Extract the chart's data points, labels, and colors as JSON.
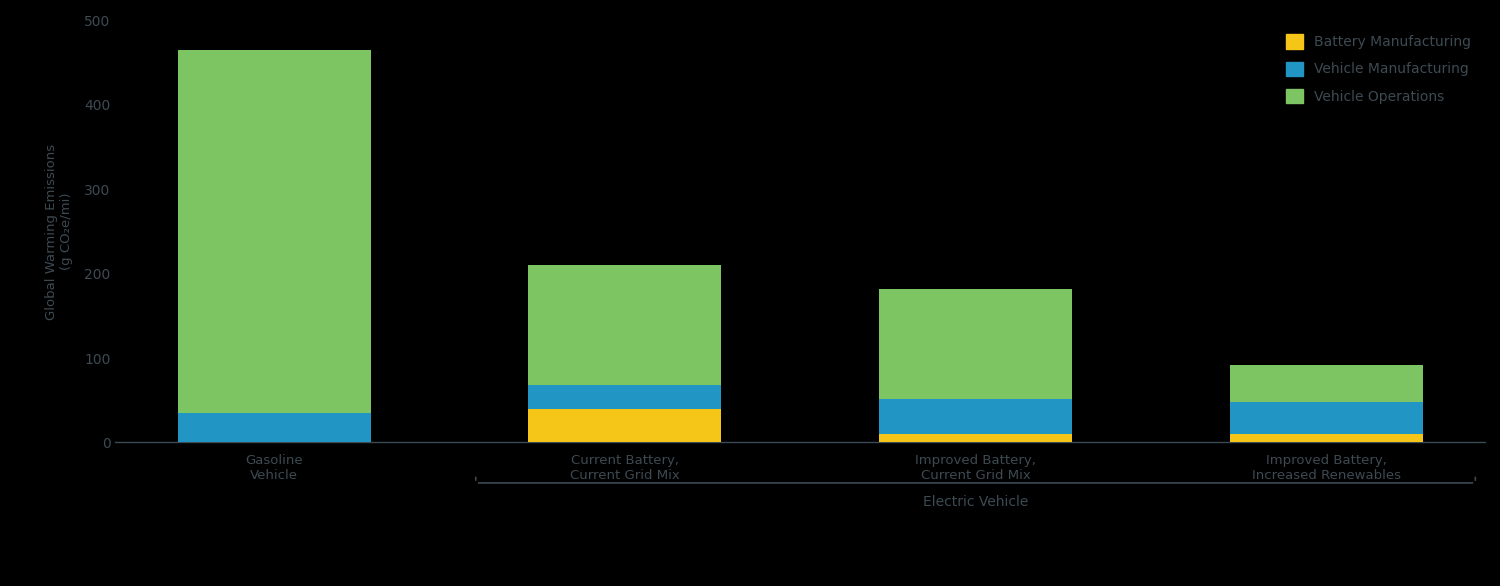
{
  "categories": [
    "Gasoline\nVehicle",
    "Current Battery,\nCurrent Grid Mix",
    "Improved Battery,\nCurrent Grid Mix",
    "Improved Battery,\nIncreased Renewables"
  ],
  "battery_manufacturing": [
    0,
    40,
    10,
    10
  ],
  "vehicle_manufacturing": [
    35,
    28,
    42,
    38
  ],
  "vehicle_operations": [
    430,
    142,
    130,
    44
  ],
  "colors": {
    "battery_manufacturing": "#F5C518",
    "vehicle_manufacturing": "#2196C4",
    "vehicle_operations": "#7DC462"
  },
  "legend_labels": [
    "Battery Manufacturing",
    "Vehicle Manufacturing",
    "Vehicle Operations"
  ],
  "ylabel": "Global Warming Emissions\n(g CO₂e/mi)",
  "xlabel_group": "Electric Vehicle",
  "ylim": [
    0,
    500
  ],
  "yticks": [
    0,
    100,
    200,
    300,
    400,
    500
  ],
  "background_color": "#000000",
  "text_color": "#3d4a52",
  "bar_width": 0.55,
  "ev_group_indices": [
    1,
    2,
    3
  ]
}
